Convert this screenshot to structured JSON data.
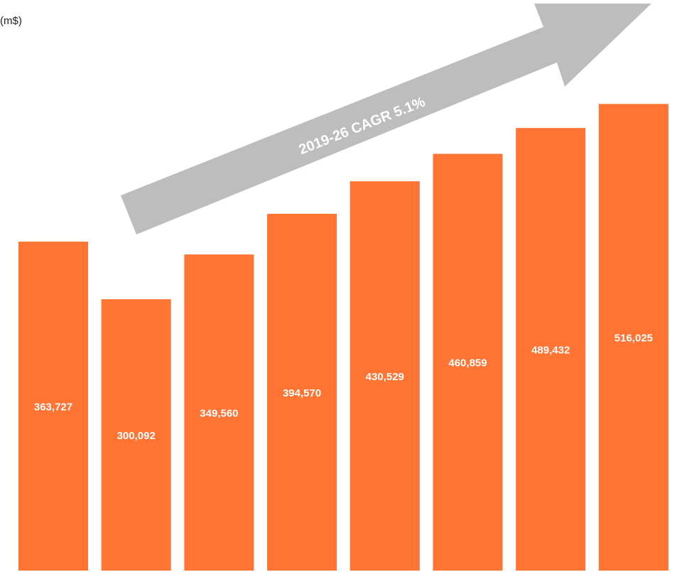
{
  "chart_data": {
    "type": "bar",
    "unit_label": "(m$)",
    "annotation": "2019-26 CAGR 5.1%",
    "values": [
      363727,
      300092,
      349560,
      394570,
      430529,
      460859,
      489432,
      516025
    ],
    "value_labels": [
      "363,727",
      "300,092",
      "349,560",
      "394,570",
      "430,529",
      "460,859",
      "489,432",
      "516,025"
    ],
    "color": "#ff7333",
    "ylim": [
      0,
      631000
    ]
  }
}
